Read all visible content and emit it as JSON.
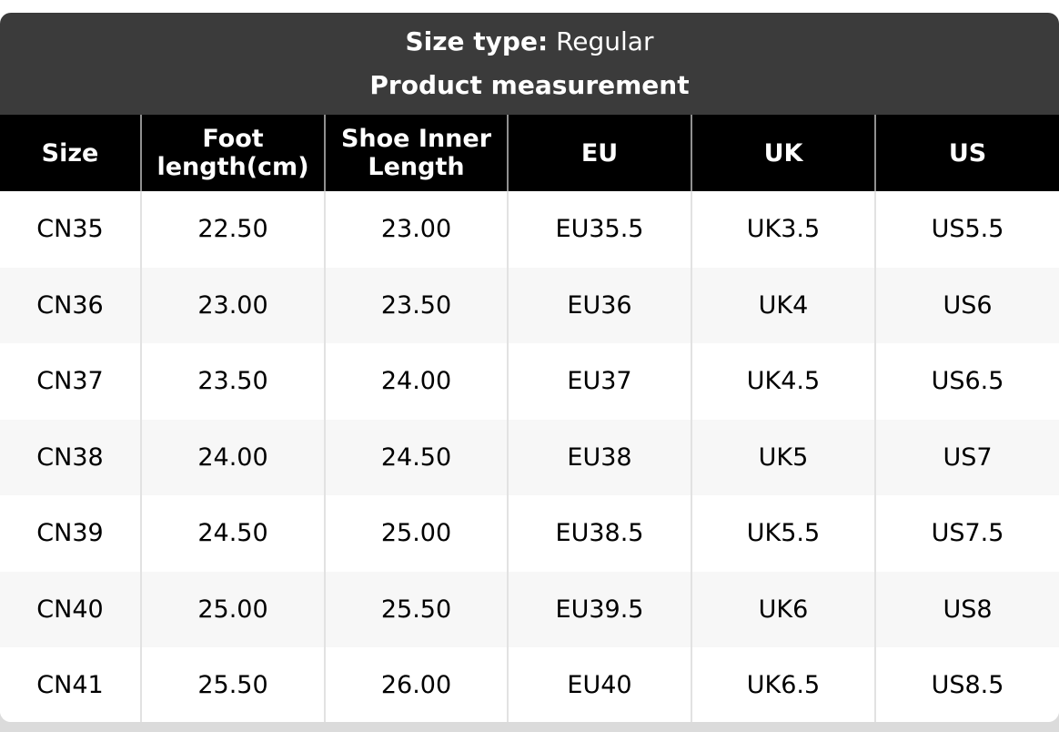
{
  "header": {
    "size_type_label": "Size type:",
    "size_type_value": "Regular",
    "subtitle": "Product measurement"
  },
  "table": {
    "columns": [
      "Size",
      "Foot length(cm)",
      "Shoe Inner Length",
      "EU",
      "UK",
      "US"
    ],
    "rows": [
      [
        "CN35",
        "22.50",
        "23.00",
        "EU35.5",
        "UK3.5",
        "US5.5"
      ],
      [
        "CN36",
        "23.00",
        "23.50",
        "EU36",
        "UK4",
        "US6"
      ],
      [
        "CN37",
        "23.50",
        "24.00",
        "EU37",
        "UK4.5",
        "US6.5"
      ],
      [
        "CN38",
        "24.00",
        "24.50",
        "EU38",
        "UK5",
        "US7"
      ],
      [
        "CN39",
        "24.50",
        "25.00",
        "EU38.5",
        "UK5.5",
        "US7.5"
      ],
      [
        "CN40",
        "25.00",
        "25.50",
        "EU39.5",
        "UK6",
        "US8"
      ],
      [
        "CN41",
        "25.50",
        "26.00",
        "EU40",
        "UK6.5",
        "US8.5"
      ]
    ]
  },
  "colors": {
    "header_bg": "#3b3b3b",
    "column_header_bg": "#000000",
    "row_alt_bg": "#f7f7f7",
    "header_divider": "#909090",
    "body_divider": "#e2e2e2",
    "outer_bottom_bg": "#dbdbdb",
    "text_on_dark": "#ffffff",
    "text_on_light": "#000000"
  }
}
